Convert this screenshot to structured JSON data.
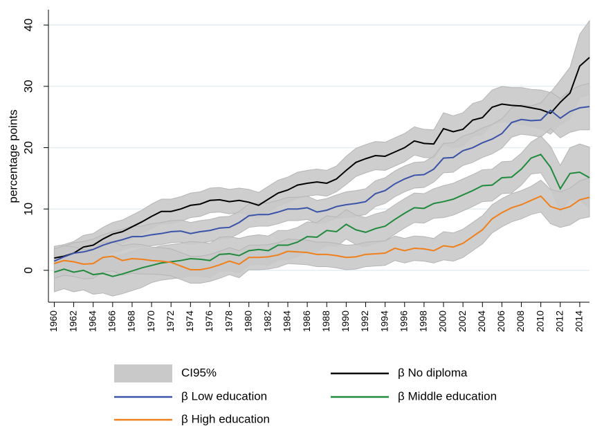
{
  "chart_data": {
    "type": "line",
    "y_label": "percentage points",
    "ci_label": "CI95%",
    "ci_color": "#c9c9c9",
    "x": [
      1960,
      1961,
      1962,
      1963,
      1964,
      1965,
      1966,
      1967,
      1968,
      1969,
      1970,
      1971,
      1972,
      1973,
      1974,
      1975,
      1976,
      1977,
      1978,
      1979,
      1980,
      1981,
      1982,
      1983,
      1984,
      1985,
      1986,
      1987,
      1988,
      1989,
      1990,
      1991,
      1992,
      1993,
      1994,
      1995,
      1996,
      1997,
      1998,
      1999,
      2000,
      2001,
      2002,
      2003,
      2004,
      2005,
      2006,
      2007,
      2008,
      2009,
      2010,
      2011,
      2012,
      2013,
      2014,
      2015
    ],
    "series": [
      {
        "name": "β No diploma",
        "color": "#000000",
        "values": [
          2,
          2.3,
          2.8,
          3.8,
          4.1,
          5.1,
          5.9,
          6.3,
          7.1,
          7.9,
          8.8,
          9.6,
          9.6,
          10,
          10.6,
          10.8,
          11.4,
          11.5,
          11.2,
          11.4,
          11.1,
          10.6,
          11.6,
          12.6,
          13.1,
          13.9,
          14.2,
          14.4,
          14.2,
          14.9,
          16.3,
          17.6,
          18.2,
          18.7,
          18.6,
          19.3,
          20,
          21.1,
          20.7,
          20.6,
          23.1,
          22.6,
          23,
          24.5,
          24.9,
          26.6,
          27.1,
          26.9,
          26.8,
          26.5,
          26.2,
          25.6,
          27.4,
          28.9,
          33.3,
          34.7
        ],
        "errors": [
          1.9,
          1.9,
          1.9,
          1.9,
          1.9,
          1.9,
          1.9,
          1.9,
          1.9,
          1.9,
          2,
          2,
          2,
          2,
          2,
          2,
          2,
          2,
          2,
          2,
          2.1,
          2.1,
          2.1,
          2.1,
          2.1,
          2.1,
          2.1,
          2.1,
          2.1,
          2.1,
          2.3,
          2.3,
          2.3,
          2.3,
          2.3,
          2.3,
          2.3,
          2.3,
          2.3,
          2.3,
          2.6,
          2.6,
          2.7,
          2.7,
          2.8,
          2.8,
          2.9,
          2.9,
          3,
          3,
          3.2,
          3.4,
          3.6,
          4.2,
          5.2,
          6
        ]
      },
      {
        "name": "β Low education",
        "color": "#3a52a8",
        "values": [
          1.5,
          2.2,
          2.8,
          3,
          3.4,
          4.1,
          4.6,
          5,
          5.5,
          5.5,
          5.8,
          6,
          6.3,
          6.4,
          6,
          6.3,
          6.5,
          6.9,
          7,
          7.8,
          8.9,
          9.1,
          9.1,
          9.5,
          10,
          10,
          10.2,
          9.5,
          9.8,
          10.4,
          10.7,
          10.9,
          11.2,
          12.5,
          13,
          14.1,
          14.9,
          15.5,
          15.6,
          16.5,
          18.3,
          18.4,
          19.5,
          20,
          20.8,
          21.4,
          22.3,
          24.1,
          24.6,
          24.4,
          24.5,
          26.1,
          24.8,
          25.9,
          26.5,
          26.7
        ],
        "errors": [
          1.7,
          1.7,
          1.7,
          1.7,
          1.7,
          1.7,
          1.7,
          1.7,
          1.7,
          1.7,
          1.8,
          1.8,
          1.8,
          1.8,
          1.8,
          1.8,
          1.8,
          1.8,
          1.8,
          1.8,
          1.9,
          1.9,
          1.9,
          1.9,
          1.9,
          1.9,
          1.9,
          1.9,
          1.9,
          1.9,
          2.1,
          2.1,
          2.1,
          2.1,
          2.1,
          2.1,
          2.1,
          2.1,
          2.1,
          2.1,
          2.4,
          2.4,
          2.4,
          2.4,
          2.4,
          2.4,
          2.4,
          2.4,
          2.4,
          2.4,
          2.8,
          3,
          3.2,
          3.4,
          3.6,
          3.8
        ]
      },
      {
        "name": "β Middle education",
        "color": "#1f8a3c",
        "values": [
          -0.3,
          0.2,
          -0.3,
          0,
          -0.7,
          -0.5,
          -1,
          -0.6,
          -0.1,
          0.4,
          0.8,
          1.2,
          1.4,
          1.6,
          1.9,
          1.8,
          1.6,
          2.6,
          2.7,
          2.4,
          3.2,
          3.4,
          3.2,
          4.1,
          4.1,
          4.6,
          5.5,
          5.4,
          6.5,
          6.3,
          7.5,
          6.6,
          6.2,
          6.8,
          7.2,
          8.3,
          9.3,
          10.2,
          10.1,
          10.9,
          11.2,
          11.6,
          12.3,
          13,
          13.8,
          13.9,
          15.1,
          15.2,
          16.5,
          18.3,
          18.9,
          16.8,
          13.3,
          15.8,
          16,
          15.1
        ],
        "errors": [
          3.2,
          3.2,
          3.2,
          3.2,
          3.2,
          3.2,
          3.2,
          3.2,
          3.2,
          3.2,
          2.8,
          2.8,
          2.8,
          2.8,
          2.8,
          2.8,
          2.8,
          2.8,
          2.8,
          2.8,
          2.4,
          2.4,
          2.4,
          2.4,
          2.4,
          2.4,
          2.4,
          2.4,
          2.4,
          2.4,
          2.4,
          2.4,
          2.4,
          2.4,
          2.4,
          2.4,
          2.4,
          2.4,
          2.4,
          2.4,
          2.6,
          2.6,
          2.6,
          2.6,
          2.6,
          2.6,
          2.6,
          2.6,
          2.6,
          2.6,
          3,
          3.4,
          3.8,
          4.2,
          4.6,
          5
        ]
      },
      {
        "name": "β High education",
        "color": "#f07f1a",
        "values": [
          1.1,
          1.6,
          1.4,
          1,
          1.1,
          2.1,
          2.3,
          1.6,
          1.9,
          1.8,
          1.6,
          1.5,
          1.3,
          0.7,
          0.1,
          0.1,
          0.4,
          0.9,
          1.5,
          1,
          2.1,
          2.1,
          2.2,
          2.5,
          3.1,
          3,
          2.9,
          2.6,
          2.6,
          2.4,
          2.1,
          2.2,
          2.6,
          2.7,
          2.8,
          3.6,
          3.2,
          3.6,
          3.5,
          3.2,
          4,
          3.8,
          4.4,
          5.5,
          6.6,
          8.4,
          9.4,
          10.2,
          10.7,
          11.4,
          12.1,
          10.4,
          9.9,
          10.4,
          11.5,
          11.9
        ],
        "errors": [
          2.4,
          2.4,
          2.4,
          2.4,
          2.4,
          2.4,
          2.4,
          2.4,
          2.4,
          2.4,
          2.2,
          2.2,
          2.2,
          2.2,
          2.2,
          2.2,
          2.2,
          2.2,
          2.2,
          2.2,
          2,
          2,
          2,
          2,
          2,
          2,
          2,
          2,
          2,
          2,
          2,
          2,
          2,
          2,
          2,
          2,
          2,
          2,
          2,
          2,
          2.3,
          2.3,
          2.3,
          2.3,
          2.3,
          2.3,
          2.3,
          2.3,
          2.3,
          2.3,
          2.6,
          2.8,
          2.9,
          3,
          3.1,
          3.2
        ]
      }
    ],
    "xlim": [
      1959.4,
      2015
    ],
    "xticks": [
      1960,
      1962,
      1964,
      1966,
      1968,
      1970,
      1972,
      1974,
      1976,
      1978,
      1980,
      1982,
      1984,
      1986,
      1988,
      1990,
      1992,
      1994,
      1996,
      1998,
      2000,
      2002,
      2004,
      2006,
      2008,
      2010,
      2012,
      2014
    ],
    "ylim": [
      -5.2,
      42.5
    ],
    "yticks": [
      0,
      10,
      20,
      30,
      40
    ],
    "grid": true
  }
}
